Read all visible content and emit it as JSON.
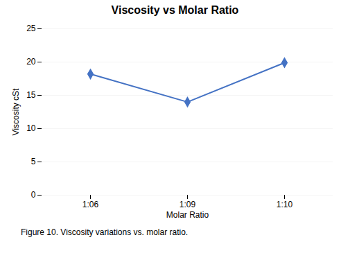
{
  "chart_data": {
    "type": "line",
    "title": "Viscosity vs Molar Ratio",
    "caption": "Figure 10. Viscosity variations vs. molar ratio.",
    "xlabel": "Molar Ratio",
    "ylabel": "Viscosity cSt",
    "categories": [
      "1:06",
      "1:09",
      "1:10"
    ],
    "values": [
      18.2,
      14.0,
      19.9
    ],
    "color": "#4472C4",
    "marker": "diamond",
    "ylim": [
      0,
      25
    ],
    "yticks": [
      0,
      5,
      10,
      15,
      20,
      25
    ],
    "grid": true
  }
}
